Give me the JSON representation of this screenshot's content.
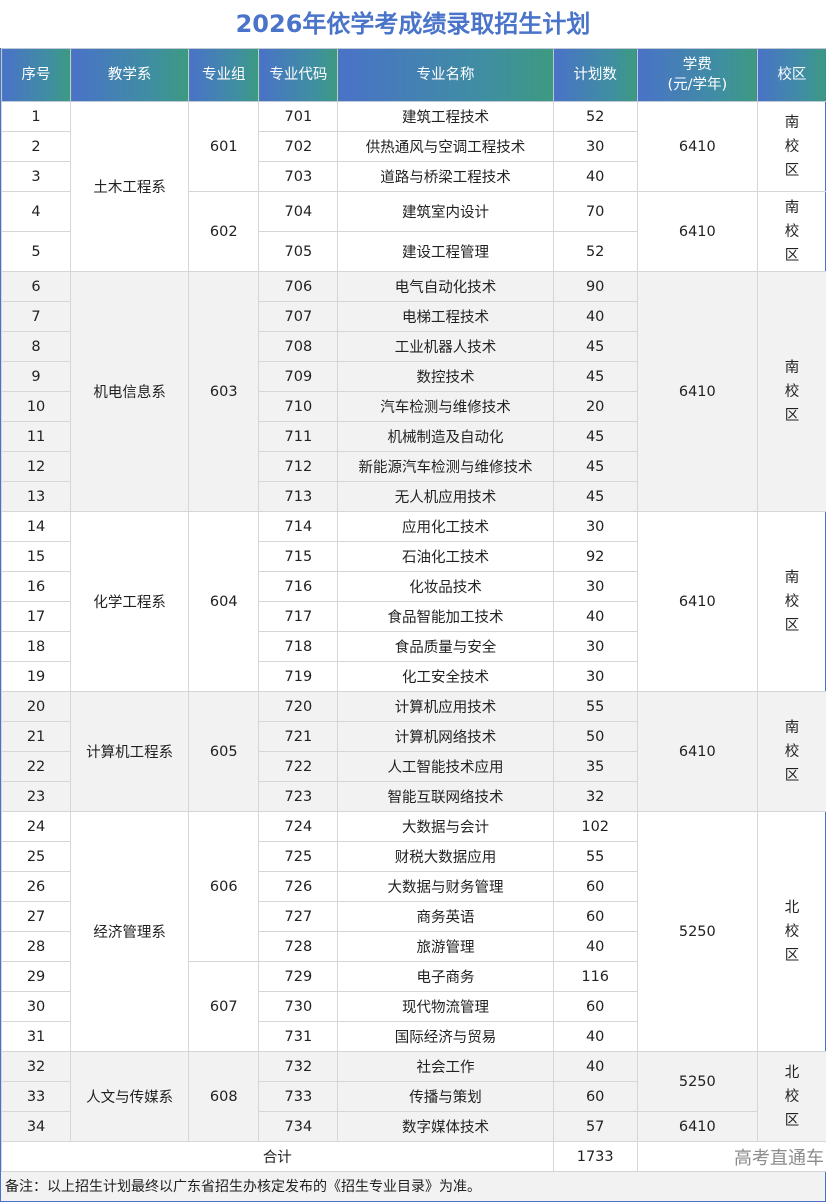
{
  "title": "2026年依学考成绩录取招生计划",
  "headers": {
    "seq": "序号",
    "dept": "教学系",
    "group": "专业组",
    "code": "专业代码",
    "name": "专业名称",
    "plan": "计划数",
    "fee_line1": "学费",
    "fee_line2": "(元/学年)",
    "campus": "校区"
  },
  "departments": [
    "土木工程系",
    "机电信息系",
    "化学工程系",
    "计算机工程系",
    "经济管理系",
    "人文与传媒系"
  ],
  "groups": [
    "601",
    "602",
    "603",
    "604",
    "605",
    "606",
    "607",
    "608"
  ],
  "fees": [
    "6410",
    "6410",
    "6410",
    "6410",
    "6410",
    "5250",
    "5250",
    "6410"
  ],
  "campuses": [
    "南校区",
    "南校区",
    "南校区",
    "南校区",
    "南校区",
    "北校区",
    "北校区"
  ],
  "rows": [
    {
      "seq": "1",
      "code": "701",
      "name": "建筑工程技术",
      "plan": "52"
    },
    {
      "seq": "2",
      "code": "702",
      "name": "供热通风与空调工程技术",
      "plan": "30"
    },
    {
      "seq": "3",
      "code": "703",
      "name": "道路与桥梁工程技术",
      "plan": "40"
    },
    {
      "seq": "4",
      "code": "704",
      "name": "建筑室内设计",
      "plan": "70"
    },
    {
      "seq": "5",
      "code": "705",
      "name": "建设工程管理",
      "plan": "52"
    },
    {
      "seq": "6",
      "code": "706",
      "name": "电气自动化技术",
      "plan": "90"
    },
    {
      "seq": "7",
      "code": "707",
      "name": "电梯工程技术",
      "plan": "40"
    },
    {
      "seq": "8",
      "code": "708",
      "name": "工业机器人技术",
      "plan": "45"
    },
    {
      "seq": "9",
      "code": "709",
      "name": "数控技术",
      "plan": "45"
    },
    {
      "seq": "10",
      "code": "710",
      "name": "汽车检测与维修技术",
      "plan": "20"
    },
    {
      "seq": "11",
      "code": "711",
      "name": "机械制造及自动化",
      "plan": "45"
    },
    {
      "seq": "12",
      "code": "712",
      "name": "新能源汽车检测与维修技术",
      "plan": "45"
    },
    {
      "seq": "13",
      "code": "713",
      "name": "无人机应用技术",
      "plan": "45"
    },
    {
      "seq": "14",
      "code": "714",
      "name": "应用化工技术",
      "plan": "30"
    },
    {
      "seq": "15",
      "code": "715",
      "name": "石油化工技术",
      "plan": "92"
    },
    {
      "seq": "16",
      "code": "716",
      "name": "化妆品技术",
      "plan": "30"
    },
    {
      "seq": "17",
      "code": "717",
      "name": "食品智能加工技术",
      "plan": "40"
    },
    {
      "seq": "18",
      "code": "718",
      "name": "食品质量与安全",
      "plan": "30"
    },
    {
      "seq": "19",
      "code": "719",
      "name": "化工安全技术",
      "plan": "30"
    },
    {
      "seq": "20",
      "code": "720",
      "name": "计算机应用技术",
      "plan": "55"
    },
    {
      "seq": "21",
      "code": "721",
      "name": "计算机网络技术",
      "plan": "50"
    },
    {
      "seq": "22",
      "code": "722",
      "name": "人工智能技术应用",
      "plan": "35"
    },
    {
      "seq": "23",
      "code": "723",
      "name": "智能互联网络技术",
      "plan": "32"
    },
    {
      "seq": "24",
      "code": "724",
      "name": "大数据与会计",
      "plan": "102"
    },
    {
      "seq": "25",
      "code": "725",
      "name": "财税大数据应用",
      "plan": "55"
    },
    {
      "seq": "26",
      "code": "726",
      "name": "大数据与财务管理",
      "plan": "60"
    },
    {
      "seq": "27",
      "code": "727",
      "name": "商务英语",
      "plan": "60"
    },
    {
      "seq": "28",
      "code": "728",
      "name": "旅游管理",
      "plan": "40"
    },
    {
      "seq": "29",
      "code": "729",
      "name": "电子商务",
      "plan": "116"
    },
    {
      "seq": "30",
      "code": "730",
      "name": "现代物流管理",
      "plan": "60"
    },
    {
      "seq": "31",
      "code": "731",
      "name": "国际经济与贸易",
      "plan": "40"
    },
    {
      "seq": "32",
      "code": "732",
      "name": "社会工作",
      "plan": "40"
    },
    {
      "seq": "33",
      "code": "733",
      "name": "传播与策划",
      "plan": "60"
    },
    {
      "seq": "34",
      "code": "734",
      "name": "数字媒体技术",
      "plan": "57"
    }
  ],
  "total": {
    "label": "合计",
    "value": "1733"
  },
  "watermark": "高考直通车",
  "note": "备注：以上招生计划最终以广东省招生办核定发布的《招生专业目录》为准。",
  "colors": {
    "title": "#4a74c9",
    "header_start": "#4a72c8",
    "header_end": "#3d9a80",
    "band": "#f2f2f2"
  }
}
